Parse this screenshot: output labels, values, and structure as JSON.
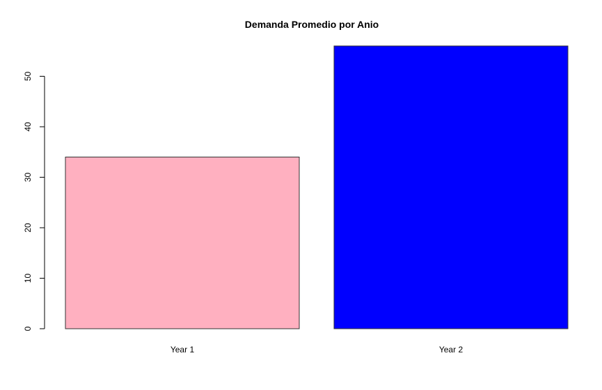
{
  "chart_data": {
    "type": "bar",
    "title": "Demanda Promedio por Anio",
    "categories": [
      "Year 1",
      "Year 2"
    ],
    "values": [
      34,
      56
    ],
    "colors": [
      "#ffb0c0",
      "#0000ff"
    ],
    "xlabel": "",
    "ylabel": "",
    "ylim": [
      0,
      56
    ],
    "yticks": [
      0,
      10,
      20,
      30,
      40,
      50
    ],
    "grid": false,
    "legend": "none"
  }
}
